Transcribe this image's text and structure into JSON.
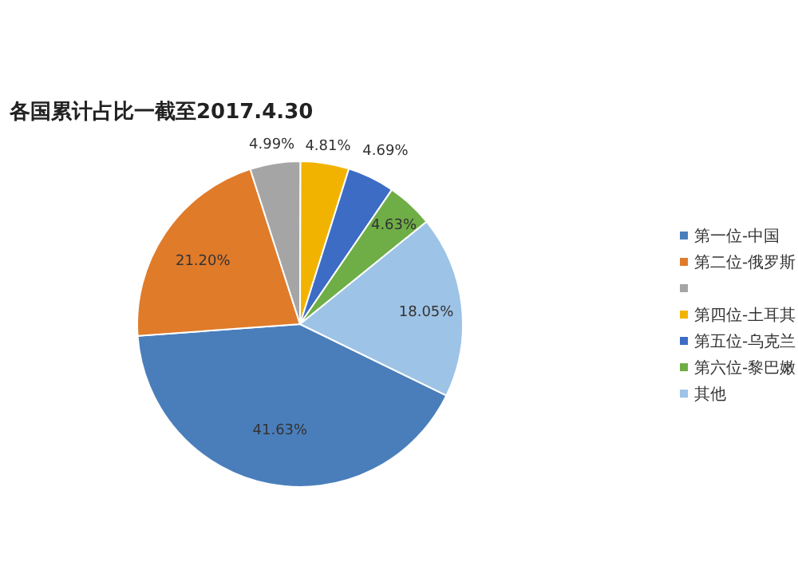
{
  "chart_data": {
    "type": "pie",
    "title": "各国累计占比一截至2017.4.30",
    "categories": [
      "第一位-中国",
      "第二位-俄罗斯",
      null,
      "第四位-土耳其",
      "第五位-乌克兰",
      "第六位-黎巴嫩",
      "其他"
    ],
    "values": [
      41.63,
      21.2,
      4.99,
      4.81,
      4.69,
      4.63,
      18.05
    ],
    "colors": [
      "#4a7ebb",
      "#e07b2a",
      "#a5a5a5",
      "#f2b300",
      "#3d6cc4",
      "#6fae47",
      "#9dc3e6"
    ],
    "value_labels": [
      "41.63%",
      "21.20%",
      "4.99%",
      "4.81%",
      "4.69%",
      "4.63%",
      "18.05%"
    ],
    "legend": "right"
  }
}
